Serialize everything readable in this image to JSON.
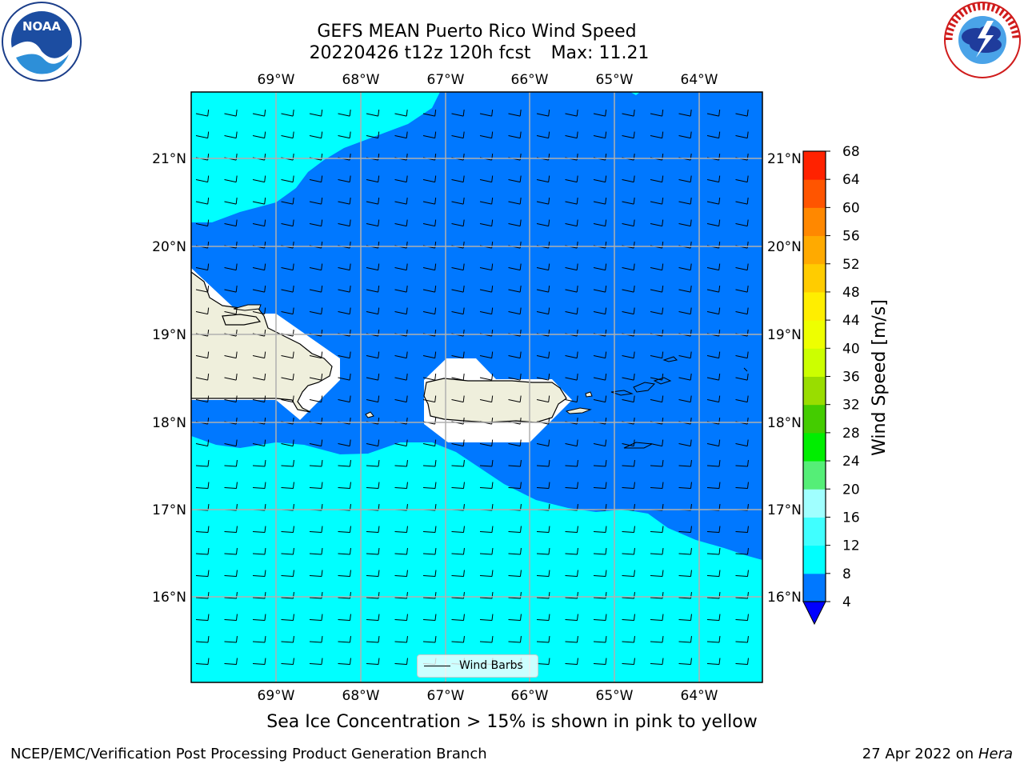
{
  "title": {
    "line1": "GEFS MEAN Puerto Rico Wind Speed",
    "date_run": "20220426 t12z 120h fcst",
    "max_label": "Max: 11.21"
  },
  "axes": {
    "lon_labels": [
      "69°W",
      "68°W",
      "67°W",
      "66°W",
      "65°W",
      "64°W"
    ],
    "lat_labels": [
      "21°N",
      "20°N",
      "19°N",
      "18°N",
      "17°N",
      "16°N"
    ]
  },
  "colorbar": {
    "label": "Wind Speed [m/s]",
    "ticks": [
      "4",
      "8",
      "12",
      "16",
      "20",
      "24",
      "28",
      "32",
      "36",
      "40",
      "44",
      "48",
      "52",
      "56",
      "60",
      "64",
      "68"
    ],
    "colors": [
      "#0078ff",
      "#00ffff",
      "#40ffff",
      "#a0ffff",
      "#55ee77",
      "#00ee00",
      "#44cc00",
      "#99dd00",
      "#ccff00",
      "#eeff00",
      "#ffee00",
      "#ffcc00",
      "#ffaa00",
      "#ff8800",
      "#ff5500",
      "#ff2200",
      "#ff0000"
    ],
    "under_color": "#0000ff"
  },
  "legend": {
    "label": "Wind Barbs"
  },
  "subtitle": "Sea Ice Concentration > 15% is shown in pink to yellow",
  "footer": {
    "left": "NCEP/EMC/Verification Post Processing Product Generation Branch",
    "right_prefix": "27 Apr 2022 on",
    "right_machine": "Hera"
  },
  "logos": {
    "noaa": {
      "text": "NOAA",
      "icon": "noaa-logo-icon"
    },
    "nws": {
      "text": "NATIONAL WEATHER SERVICE",
      "icon": "nws-logo-icon"
    }
  },
  "map_colors": {
    "band_4_8": "#0078ff",
    "band_8_12": "#00ffff",
    "land": "#efefdc",
    "grid": "#b0b0b0"
  }
}
